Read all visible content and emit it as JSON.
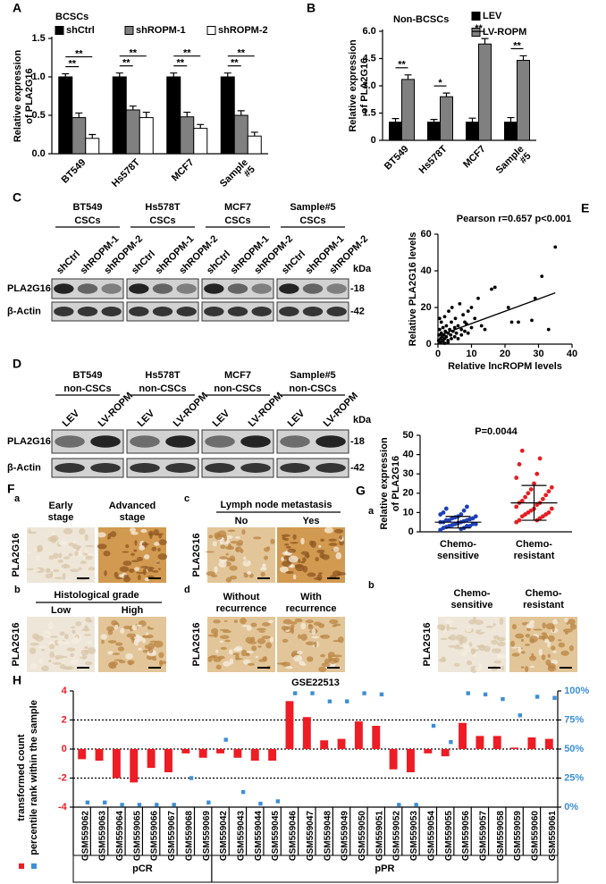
{
  "chart_data": [
    {
      "type": "bar",
      "panel": "A",
      "legend_title": "BCSCs",
      "y_label": [
        "Relative expression",
        "of PLA2G16"
      ],
      "categories": [
        "BT549",
        "Hs578T",
        "MCF7",
        "Sample #5"
      ],
      "series": [
        {
          "name": "shCtrl",
          "color": "#000000",
          "values": [
            1.0,
            1.0,
            1.0,
            1.0
          ],
          "errors": [
            0.04,
            0.05,
            0.05,
            0.05
          ]
        },
        {
          "name": "shROPM-1",
          "color": "#808080",
          "values": [
            0.47,
            0.57,
            0.48,
            0.5
          ],
          "errors": [
            0.06,
            0.05,
            0.06,
            0.06
          ]
        },
        {
          "name": "shROPM-2",
          "color": "#ffffff",
          "values": [
            0.2,
            0.47,
            0.33,
            0.23
          ],
          "errors": [
            0.05,
            0.07,
            0.05,
            0.05
          ]
        }
      ],
      "significance": [
        [
          "**",
          "**"
        ],
        [
          "**",
          "**"
        ],
        [
          "**",
          "**"
        ],
        [
          "**",
          "**"
        ]
      ],
      "ylim": [
        0,
        1.5
      ],
      "yticks": [
        {
          "value": 0,
          "label": "0.0"
        },
        0.5,
        {
          "value": 1,
          "label": "1.0"
        },
        1.5
      ]
    },
    {
      "type": "bar",
      "panel": "B",
      "legend_title": "Non-BCSCs",
      "y_label": [
        "Relative expression",
        "of PLA2G16"
      ],
      "categories": [
        "BT549",
        "Hs578T",
        "MCF7",
        "Sample #5"
      ],
      "series": [
        {
          "name": "LEV",
          "color": "#000000",
          "values": [
            1.0,
            1.0,
            1.0,
            1.0
          ],
          "errors": [
            0.2,
            0.15,
            0.22,
            0.25
          ]
        },
        {
          "name": "LV-ROPM",
          "color": "#808080",
          "values": [
            3.35,
            2.4,
            5.3,
            4.4
          ],
          "errors": [
            0.25,
            0.2,
            0.3,
            0.25
          ]
        }
      ],
      "significance": [
        [
          "**"
        ],
        [
          "*"
        ],
        [
          "**"
        ],
        [
          "**"
        ]
      ],
      "ylim": [
        0,
        6
      ],
      "yticks": [
        0,
        1.5,
        {
          "value": 3,
          "label": "3.0"
        },
        4.5,
        {
          "value": 6,
          "label": "6.0"
        }
      ]
    },
    {
      "type": "scatter",
      "panel": "E",
      "annotation": "Pearson r=0.657 p<0.001",
      "x_label": "Relative lncROPM levels",
      "y_label": "Relative PLA2G16 levels",
      "color": "#000000",
      "x": [
        0.2,
        0.3,
        0.5,
        0.5,
        0.8,
        1,
        1,
        1.2,
        1.5,
        1.5,
        1.8,
        2,
        2,
        2.2,
        2.5,
        2.5,
        3,
        3,
        3.2,
        3.5,
        3.8,
        4,
        4,
        4.2,
        4.5,
        5,
        5,
        5.2,
        5.5,
        6,
        6,
        6.5,
        7,
        7,
        7.5,
        8,
        8,
        8.5,
        9,
        9,
        10,
        10,
        11,
        12,
        13,
        14,
        16,
        17,
        21,
        22,
        24,
        28,
        29,
        31,
        35,
        33,
        0.5,
        1,
        2,
        3
      ],
      "y": [
        2,
        5,
        1,
        8,
        3,
        6,
        12,
        4,
        2,
        9,
        5,
        3,
        15,
        7,
        4,
        10,
        6,
        2,
        18,
        8,
        5,
        3,
        12,
        20,
        7,
        4,
        9,
        14,
        6,
        3,
        10,
        22,
        5,
        8,
        16,
        7,
        12,
        11,
        18,
        6,
        9,
        20,
        14,
        25,
        10,
        8,
        30,
        31,
        20,
        12,
        12,
        13,
        25,
        37,
        53,
        8,
        14,
        1,
        0.5,
        1
      ],
      "trend": {
        "x": [
          0,
          35
        ],
        "y": [
          4.5,
          28
        ]
      },
      "xlim": [
        0,
        40
      ],
      "ylim": [
        0,
        60
      ],
      "xticks": [
        0,
        10,
        20,
        30,
        40
      ],
      "yticks": [
        0,
        20,
        40,
        60
      ]
    },
    {
      "type": "dot",
      "panel": "G",
      "subpanel": "a",
      "annotation": "P=0.0044",
      "y_label": [
        "Relative expression",
        "of PLA2G16"
      ],
      "categories": [
        "Chemo-sensitive",
        "Chemo-resistant"
      ],
      "colors": [
        "#1f3fb8",
        "#e31e24"
      ],
      "values": [
        [
          1,
          1.5,
          2,
          2,
          2.5,
          3,
          3,
          3,
          3.5,
          4,
          4,
          4,
          4.5,
          5,
          5,
          5,
          5.5,
          6,
          6,
          6,
          6.5,
          7,
          7,
          7.5,
          8,
          8,
          9,
          9,
          10,
          11,
          12,
          13
        ],
        [
          5,
          6,
          6,
          7,
          8,
          8,
          9,
          9,
          10,
          10,
          11,
          12,
          12,
          13,
          14,
          15,
          15,
          16,
          17,
          18,
          19,
          20,
          21,
          22,
          23,
          25,
          28,
          30,
          35,
          38,
          42
        ]
      ],
      "mean": [
        5,
        15
      ],
      "sd": [
        3,
        9
      ],
      "ylim": [
        0,
        50
      ],
      "yticks": [
        0,
        10,
        20,
        30,
        40,
        50
      ]
    },
    {
      "type": "combo",
      "panel": "H",
      "title": "GSE22513",
      "categories": [
        "GSM559062",
        "GSM559063",
        "GSM559064",
        "GSM559065",
        "GSM559066",
        "GSM559067",
        "GSM559068",
        "GSM559069",
        "GSM559042",
        "GSM559043",
        "GSM559044",
        "GSM559045",
        "GSM559046",
        "GSM559047",
        "GSM559048",
        "GSM559049",
        "GSM559050",
        "GSM559051",
        "GSM559052",
        "GSM559053",
        "GSM559054",
        "GSM559055",
        "GSM559056",
        "GSM559057",
        "GSM559058",
        "GSM559059",
        "GSM559060",
        "GSM559061"
      ],
      "series": [
        {
          "name": "transformed count",
          "color": "#ee1c25",
          "values": [
            -0.7,
            -0.8,
            -2.0,
            -2.3,
            -1.3,
            -1.6,
            -0.3,
            -0.6,
            -0.3,
            -0.6,
            -0.8,
            -0.8,
            3.3,
            2.2,
            0.6,
            0.7,
            1.9,
            1.6,
            -1.4,
            -1.6,
            -0.3,
            -0.5,
            1.8,
            0.9,
            0.9,
            0.1,
            0.8,
            0.7
          ]
        },
        {
          "name": "percentile rank within the sample",
          "color": "#3d8fd6",
          "axis": "y2",
          "values": [
            4,
            4,
            2,
            2,
            2,
            2,
            25,
            4,
            58,
            13,
            3,
            5,
            98,
            98,
            91,
            91,
            98,
            97,
            2,
            2,
            70,
            56,
            98,
            97,
            93,
            79,
            95,
            94
          ]
        }
      ],
      "groups": [
        {
          "label": "pCR",
          "size": 8
        },
        {
          "label": "pPR",
          "size": 20
        }
      ],
      "grid": "dotted",
      "ylim": [
        -4,
        4
      ],
      "yticks": [
        -4,
        -2,
        0,
        2,
        4
      ],
      "y2lim": [
        0,
        100
      ],
      "y2ticks": [
        {
          "value": 0,
          "label": "0%"
        },
        {
          "value": 25,
          "label": "25%"
        },
        {
          "value": 50,
          "label": "50%"
        },
        {
          "value": 75,
          "label": "75%"
        },
        {
          "value": 100,
          "label": "100%"
        }
      ]
    }
  ],
  "blots": [
    {
      "panel": "C",
      "unit": "kDa",
      "groups": [
        {
          "title": [
            "BT549",
            "CSCs"
          ],
          "lanes": [
            "shCtrl",
            "shROPM-1",
            "shROPM-2"
          ]
        },
        {
          "title": [
            "Hs578T",
            "CSCs"
          ],
          "lanes": [
            "shCtrl",
            "shROPM-1",
            "shROPM-2"
          ]
        },
        {
          "title": [
            "MCF7",
            "CSCs"
          ],
          "lanes": [
            "shCtrl",
            "shROPM-1",
            "shROPM-2"
          ]
        },
        {
          "title": [
            "Sample#5",
            "CSCs"
          ],
          "lanes": [
            "shCtrl",
            "shROPM-1",
            "shROPM-2"
          ]
        }
      ],
      "rows": [
        {
          "label": "PLA2G16",
          "marker": "-18"
        },
        {
          "label": "β-Actin",
          "marker": "-42"
        }
      ]
    },
    {
      "panel": "D",
      "unit": "kDa",
      "groups": [
        {
          "title": [
            "BT549",
            "non-CSCs"
          ],
          "lanes": [
            "LEV",
            "LV-ROPM"
          ]
        },
        {
          "title": [
            "Hs578T",
            "non-CSCs"
          ],
          "lanes": [
            "LEV",
            "LV-ROPM"
          ]
        },
        {
          "title": [
            "MCF7",
            "non-CSCs"
          ],
          "lanes": [
            "LEV",
            "LV-ROPM"
          ]
        },
        {
          "title": [
            "Sample#5",
            "non-CSCs"
          ],
          "lanes": [
            "LEV",
            "LV-ROPM"
          ]
        }
      ],
      "rows": [
        {
          "label": "PLA2G16",
          "marker": "-18"
        },
        {
          "label": "β-Actin",
          "marker": "-42"
        }
      ]
    }
  ],
  "histology": {
    "panel": "F",
    "sections": [
      {
        "letter": "a",
        "headers": [
          "Early stage",
          "Advanced stage"
        ],
        "stain": "PLA2G16"
      },
      {
        "letter": "b",
        "group_title": "Histological grade",
        "headers": [
          "Low",
          "High"
        ],
        "stain": "PLA2G16"
      },
      {
        "letter": "c",
        "group_title": "Lymph node metastasis",
        "headers": [
          "No",
          "Yes"
        ],
        "stain": "PLA2G16"
      },
      {
        "letter": "d",
        "headers": [
          "Without recurrence",
          "With recurrence"
        ],
        "stain": "PLA2G16"
      }
    ]
  },
  "chemo_images": {
    "letter": "b",
    "headers": [
      "Chemo-sensitive",
      "Chemo-resistant"
    ],
    "stain": "PLA2G16"
  }
}
